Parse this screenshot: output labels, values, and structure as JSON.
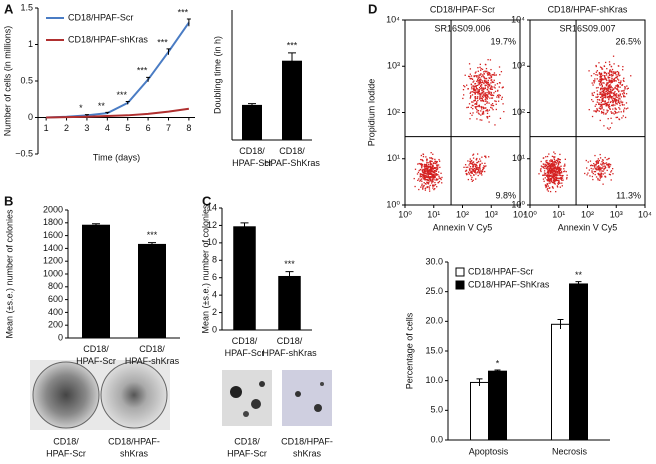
{
  "panel_labels": [
    "A",
    "B",
    "C",
    "D"
  ],
  "chart_data": [
    {
      "type": "line",
      "y_label": "Number of cells (in millions)",
      "x_label": "Time (days)",
      "x": [
        1,
        2,
        3,
        4,
        5,
        6,
        7,
        8
      ],
      "xlim": [
        0.6,
        8.3
      ],
      "xticks": [
        1,
        2,
        3,
        4,
        5,
        6,
        7,
        8
      ],
      "ylim": [
        -0.5,
        1.5
      ],
      "yticks": [
        1.5,
        1,
        0.5,
        0,
        {
          "value": -0.5,
          "label": "−0.5"
        }
      ],
      "series": [
        {
          "name": "CD18/HPAF-Scr",
          "color": "#4a7cc4",
          "values": [
            0,
            0.01,
            0.03,
            0.06,
            0.2,
            0.52,
            0.9,
            1.3
          ],
          "errors": [
            0,
            0,
            0.01,
            0.01,
            0.02,
            0.03,
            0.04,
            0.05
          ]
        },
        {
          "name": "CD18/HPAF-shKras",
          "color": "#b03030",
          "values": [
            0,
            0.005,
            0.01,
            0.02,
            0.03,
            0.05,
            0.08,
            0.12
          ]
        }
      ],
      "annotations": [
        {
          "x": 3,
          "text": "*"
        },
        {
          "x": 4,
          "text": "**"
        },
        {
          "x": 5,
          "text": "***"
        },
        {
          "x": 6,
          "text": "***"
        },
        {
          "x": 7,
          "text": "***"
        },
        {
          "x": 8,
          "text": "***"
        }
      ]
    },
    {
      "type": "bar",
      "y_label": "Doubling time (in h)",
      "categories": [
        "CD18/HPAF-Scr",
        "CD18/HPAF-ShKras"
      ],
      "values": [
        27,
        61
      ],
      "errors": [
        1,
        6
      ],
      "color": "#000000",
      "ylim": [
        0,
        100
      ],
      "annotations": [
        {
          "x": "CD18/HPAF-ShKras",
          "text": "***"
        }
      ]
    },
    {
      "type": "bar",
      "y_label": "Mean (±s.e.) number of colonies",
      "categories": [
        "CD18/HPAF-Scr",
        "CD18/HPAF-shKras"
      ],
      "values": [
        1770,
        1470
      ],
      "errors": [
        15,
        20
      ],
      "color": "#000000",
      "ylim": [
        0,
        2000
      ],
      "yticks": [
        0,
        200,
        400,
        600,
        800,
        1000,
        1200,
        1400,
        1600,
        1800,
        2000
      ],
      "annotations": [
        {
          "x": "CD18/HPAF-shKras",
          "text": "***"
        }
      ],
      "photo_captions": [
        [
          "CD18/",
          "HPAF-Scr"
        ],
        [
          "CD18/HPAF-",
          "shKras"
        ]
      ]
    },
    {
      "type": "bar",
      "y_label": "Mean (±s.e.) number of colonies",
      "categories": [
        "CD18/HPAF-Scr",
        "CD18/HPAF-shKras"
      ],
      "values": [
        11.9,
        6.2
      ],
      "errors": [
        0.4,
        0.5
      ],
      "color": "#000000",
      "ylim": [
        0,
        14
      ],
      "yticks": [
        0,
        2,
        4,
        6,
        8,
        10,
        12,
        14
      ],
      "annotations": [
        {
          "x": "CD18/HPAF-shKras",
          "text": "***"
        }
      ],
      "photo_captions": [
        [
          "CD18/",
          "HPAF-Scr"
        ],
        [
          "CD18/HPAF-",
          "shKras"
        ]
      ]
    },
    {
      "type": "flow",
      "title": "CD18/HPAF-Scr",
      "sample": "SR16S09.006",
      "x_label": "Annexin V Cy5",
      "y_label": "Propidium Iodide",
      "log": true,
      "xlim": [
        1,
        10000
      ],
      "ylim": [
        1,
        10000
      ],
      "xticks": [
        {
          "value": 1,
          "label": "10⁰"
        },
        {
          "value": 10,
          "label": "10¹"
        },
        {
          "value": 100,
          "label": "10²"
        },
        {
          "value": 1000,
          "label": "10³"
        },
        {
          "value": 10000,
          "label": "10⁴"
        }
      ],
      "yticks": [
        {
          "value": 1,
          "label": "10⁰"
        },
        {
          "value": 10,
          "label": "10¹"
        },
        {
          "value": 100,
          "label": "10²"
        },
        {
          "value": 1000,
          "label": "10³"
        },
        {
          "value": 10000,
          "label": "10⁴"
        }
      ],
      "gate": {
        "x": 40,
        "y": 30
      },
      "color": "#d42020",
      "quadrant_labels": {
        "upper_right": "19.7%",
        "lower_right": "9.8%"
      }
    },
    {
      "type": "flow",
      "title": "CD18/HPAF-shKras",
      "sample": "SR16S09.007",
      "x_label": "Annexin V Cy5",
      "y_label": "Propidium Iodide",
      "log": true,
      "xlim": [
        1,
        10000
      ],
      "ylim": [
        1,
        10000
      ],
      "xticks": [
        {
          "value": 1,
          "label": "10⁰"
        },
        {
          "value": 10,
          "label": "10¹"
        },
        {
          "value": 100,
          "label": "10²"
        },
        {
          "value": 1000,
          "label": "10³"
        },
        {
          "value": 10000,
          "label": "10⁴"
        }
      ],
      "yticks": [
        {
          "value": 1,
          "label": "10⁰"
        },
        {
          "value": 10,
          "label": "10¹"
        },
        {
          "value": 100,
          "label": "10²"
        },
        {
          "value": 1000,
          "label": "10³"
        },
        {
          "value": 10000,
          "label": "10⁴"
        }
      ],
      "gate": {
        "x": 40,
        "y": 30
      },
      "color": "#d42020",
      "quadrant_labels": {
        "upper_right": "26.5%",
        "lower_right": "11.3%"
      }
    },
    {
      "type": "grouped_bar",
      "y_label": "Percentage of cells",
      "categories": [
        "Apoptosis",
        "Necrosis"
      ],
      "series": [
        {
          "name": "CD18/HPAF-Scr",
          "color": "#ffffff",
          "values": [
            9.7,
            19.5
          ],
          "errors": [
            0.6,
            0.8
          ]
        },
        {
          "name": "CD18/HPAF-ShKras",
          "color": "#000000",
          "values": [
            11.6,
            26.3
          ],
          "errors": [
            0.2,
            0.4
          ]
        }
      ],
      "ylim": [
        0,
        30
      ],
      "legend": "upper left",
      "yticks": [
        {
          "value": 0,
          "label": "0.0"
        },
        {
          "value": 5,
          "label": "5.0"
        },
        {
          "value": 10,
          "label": "10.0"
        },
        {
          "value": 15,
          "label": "15.0"
        },
        {
          "value": 20,
          "label": "20.0"
        },
        {
          "value": 25,
          "label": "25.0"
        },
        {
          "value": 30,
          "label": "30.0"
        }
      ],
      "annotations": [
        {
          "x": "Apoptosis",
          "series": 1,
          "text": "*"
        },
        {
          "x": "Necrosis",
          "series": 1,
          "text": "**"
        }
      ]
    }
  ]
}
